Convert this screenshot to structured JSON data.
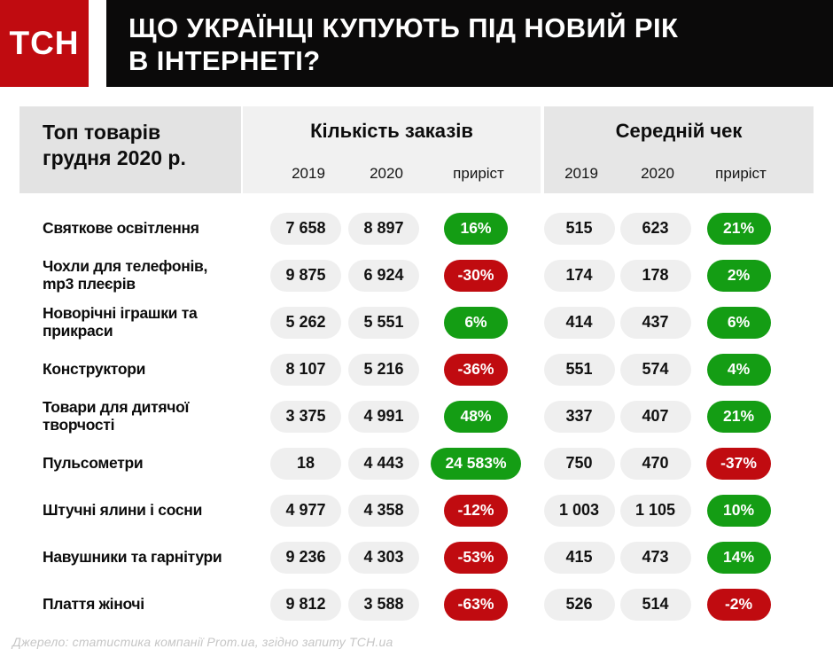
{
  "logo": {
    "text": "ТСН"
  },
  "title": {
    "line1": "ЩО УКРАЇНЦІ КУПУЮТЬ ПІД НОВИЙ РІК",
    "line2": "В ІНТЕРНЕТІ?"
  },
  "table_header": {
    "product_col": "Топ товарів грудня 2020 р.",
    "orders_group": "Кількість заказів",
    "check_group": "Середній чек",
    "sub_cols": [
      "2019",
      "2020",
      "приріст"
    ]
  },
  "chart_data": {
    "type": "table",
    "title": "Що українці купують під Новий рік в інтернеті?",
    "column_groups": [
      "Кількість заказів",
      "Середній чек"
    ],
    "sub_columns": [
      "2019",
      "2020",
      "приріст"
    ],
    "rows": [
      {
        "product": "Святкове освітлення",
        "orders_2019": 7658,
        "orders_2020": 8897,
        "orders_growth": "16%",
        "check_2019": 515,
        "check_2020": 623,
        "check_growth": "21%"
      },
      {
        "product": "Чохли для телефонів, mp3 плеєрів",
        "orders_2019": 9875,
        "orders_2020": 6924,
        "orders_growth": "-30%",
        "check_2019": 174,
        "check_2020": 178,
        "check_growth": "2%"
      },
      {
        "product": "Новорічні іграшки та прикраси",
        "orders_2019": 5262,
        "orders_2020": 5551,
        "orders_growth": "6%",
        "check_2019": 414,
        "check_2020": 437,
        "check_growth": "6%"
      },
      {
        "product": "Конструктори",
        "orders_2019": 8107,
        "orders_2020": 5216,
        "orders_growth": "-36%",
        "check_2019": 551,
        "check_2020": 574,
        "check_growth": "4%"
      },
      {
        "product": "Товари для дитячої творчості",
        "orders_2019": 3375,
        "orders_2020": 4991,
        "orders_growth": "48%",
        "check_2019": 337,
        "check_2020": 407,
        "check_growth": "21%"
      },
      {
        "product": "Пульсометри",
        "orders_2019": 18,
        "orders_2020": 4443,
        "orders_growth": "24 583%",
        "check_2019": 750,
        "check_2020": 470,
        "check_growth": "-37%"
      },
      {
        "product": "Штучні ялини і сосни",
        "orders_2019": 4977,
        "orders_2020": 4358,
        "orders_growth": "-12%",
        "check_2019": 1003,
        "check_2020": 1105,
        "check_growth": "10%"
      },
      {
        "product": "Навушники та гарнітури",
        "orders_2019": 9236,
        "orders_2020": 4303,
        "orders_growth": "-53%",
        "check_2019": 415,
        "check_2020": 473,
        "check_growth": "14%"
      },
      {
        "product": "Плаття жіночі",
        "orders_2019": 9812,
        "orders_2020": 3588,
        "orders_growth": "-63%",
        "check_2019": 526,
        "check_2020": 514,
        "check_growth": "-2%"
      }
    ]
  },
  "footer": {
    "source": "Джерело: статистика компанії Prom.ua, згідно запиту ТСН.ua"
  },
  "colors": {
    "positive": "#149d14",
    "negative": "#c00b10",
    "brand_red": "#c00b10",
    "header_bg": "#0b0a0a",
    "pill_bg": "#efefef"
  }
}
